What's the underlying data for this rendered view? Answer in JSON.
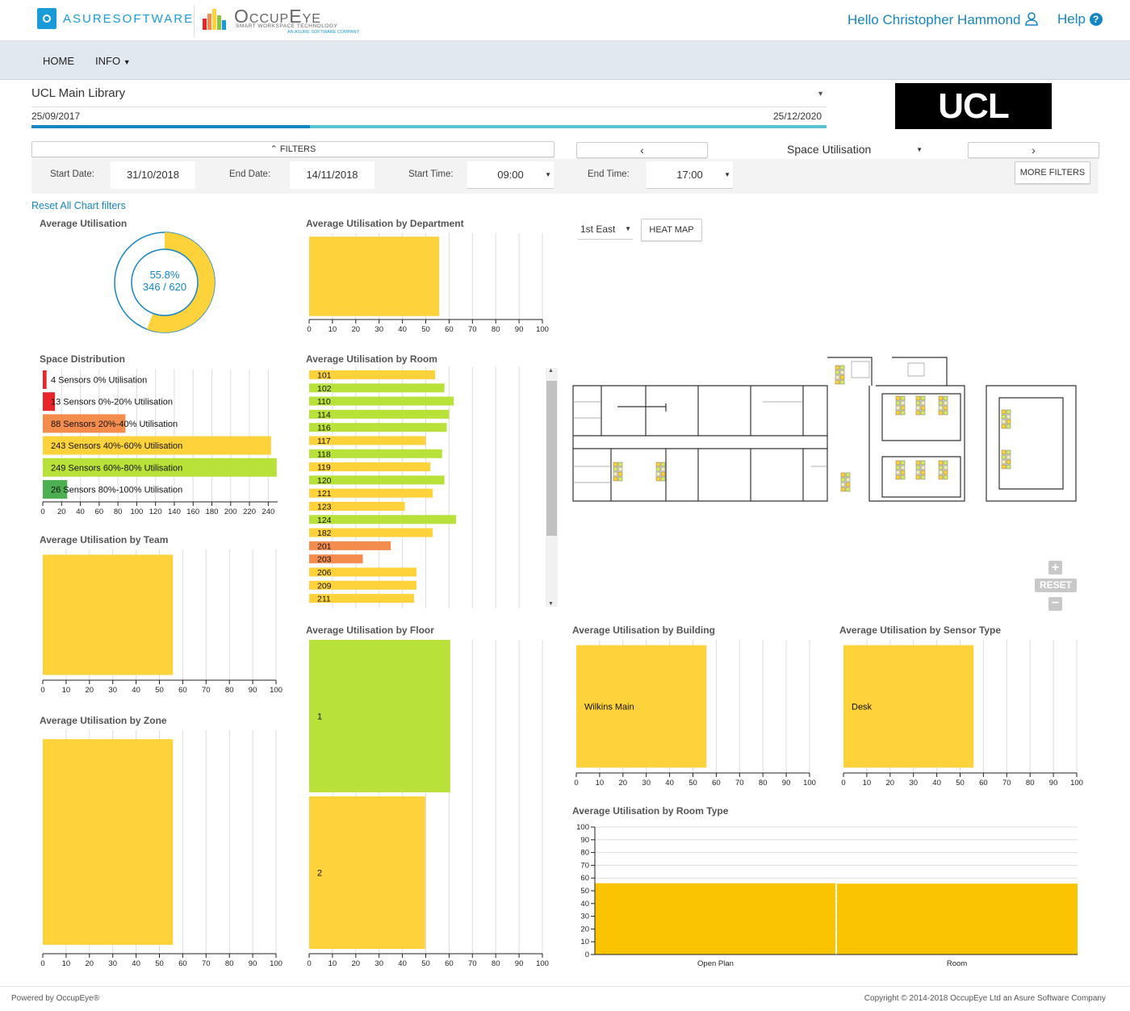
{
  "header": {
    "brand_name": "ASURESOFTWARE",
    "product_name": "OccupEye",
    "product_tagline": "SMART WORKSPACE TECHNOLOGY",
    "product_sub": "AN ASURE SOFTWARE COMPANY",
    "greeting": "Hello Christopher Hammond",
    "help_label": "Help"
  },
  "nav": {
    "home": "HOME",
    "info": "INFO"
  },
  "survey": {
    "name": "UCL Main Library",
    "start_date": "25/09/2017",
    "end_date": "25/12/2020",
    "progress_fraction": 0.35,
    "logo_text": "UCL"
  },
  "controls": {
    "filters_label": "FILTERS",
    "view_select": "Space Utilisation",
    "more_filters": "MORE FILTERS"
  },
  "filters": {
    "start_date_label": "Start Date:",
    "start_date": "31/10/2018",
    "end_date_label": "End Date:",
    "end_date": "14/11/2018",
    "start_time_label": "Start Time:",
    "start_time": "09:00",
    "end_time_label": "End Time:",
    "end_time": "17:00"
  },
  "reset_link": "Reset All Chart filters",
  "avg_util": {
    "title": "Average Utilisation",
    "percent": "55.8%",
    "ratio": "346 / 620",
    "value": 0.558
  },
  "floorplan": {
    "floor_select": "1st East",
    "heatmap_button": "HEAT MAP",
    "zoom_reset": "RESET"
  },
  "footer": {
    "left": "Powered by OccupEye®",
    "right": "Copyright © 2014-2018 OccupEye Ltd an Asure Software Company"
  },
  "colors": {
    "yellow": "#fed23a",
    "green": "#b8e23a",
    "orange": "#f48c4d",
    "red": "#e8262a",
    "darkgreen": "#4caf50",
    "roomtype": "#fbc403",
    "accent": "#1685c3",
    "teal": "#5bc4d0"
  },
  "chart_data": [
    {
      "id": "dept",
      "type": "bar",
      "orientation": "horizontal",
      "title": "Average Utilisation by Department",
      "categories": [
        ""
      ],
      "values": [
        55.8
      ],
      "xlim": [
        0,
        100
      ]
    },
    {
      "id": "space_dist",
      "type": "bar",
      "orientation": "horizontal",
      "title": "Space Distribution",
      "xlim": [
        0,
        250
      ],
      "categories": [
        "4 Sensors 0% Utilisation",
        "13 Sensors 0%-20% Utilisation",
        "88 Sensors 20%-40% Utilisation",
        "243 Sensors 40%-60% Utilisation",
        "249 Sensors 60%-80% Utilisation",
        "26 Sensors 80%-100% Utilisation"
      ],
      "values": [
        4,
        13,
        88,
        243,
        249,
        26
      ],
      "colors": [
        "red",
        "red",
        "orange",
        "yellow",
        "green",
        "darkgreen"
      ],
      "ticks": [
        0,
        20,
        40,
        60,
        80,
        100,
        120,
        140,
        160,
        180,
        200,
        220,
        240
      ]
    },
    {
      "id": "room",
      "type": "bar",
      "orientation": "horizontal",
      "title": "Average Utilisation by Room",
      "xlim": [
        0,
        100
      ],
      "categories": [
        "101",
        "102",
        "110",
        "114",
        "116",
        "117",
        "118",
        "119",
        "120",
        "121",
        "123",
        "124",
        "182",
        "201",
        "203",
        "206",
        "209",
        "211"
      ],
      "values": [
        54,
        58,
        62,
        60,
        59,
        50,
        57,
        52,
        58,
        53,
        41,
        63,
        53,
        35,
        23,
        46,
        46,
        45
      ],
      "colors": [
        "yellow",
        "green",
        "green",
        "green",
        "green",
        "yellow",
        "green",
        "yellow",
        "green",
        "yellow",
        "yellow",
        "green",
        "yellow",
        "orange",
        "orange",
        "yellow",
        "yellow",
        "yellow"
      ]
    },
    {
      "id": "team",
      "type": "bar",
      "orientation": "horizontal",
      "title": "Average Utilisation by Team",
      "categories": [
        ""
      ],
      "values": [
        55.8
      ],
      "xlim": [
        0,
        100
      ]
    },
    {
      "id": "zone",
      "type": "bar",
      "orientation": "horizontal",
      "title": "Average Utilisation by Zone",
      "categories": [
        ""
      ],
      "values": [
        55.8
      ],
      "xlim": [
        0,
        100
      ]
    },
    {
      "id": "floor",
      "type": "bar",
      "orientation": "horizontal",
      "title": "Average Utilisation by Floor",
      "categories": [
        "1",
        "2"
      ],
      "values": [
        60.5,
        49.8
      ],
      "colors": [
        "green",
        "yellow"
      ],
      "xlim": [
        0,
        100
      ]
    },
    {
      "id": "building",
      "type": "bar",
      "orientation": "horizontal",
      "title": "Average Utilisation by Building",
      "categories": [
        "Wilkins Main"
      ],
      "values": [
        55.8
      ],
      "xlim": [
        0,
        100
      ]
    },
    {
      "id": "sensor",
      "type": "bar",
      "orientation": "horizontal",
      "title": "Average Utilisation by Sensor Type",
      "categories": [
        "Desk"
      ],
      "values": [
        55.8
      ],
      "xlim": [
        0,
        100
      ]
    },
    {
      "id": "roomtype",
      "type": "bar",
      "orientation": "vertical",
      "title": "Average Utilisation by Room Type",
      "categories": [
        "Open Plan",
        "Room"
      ],
      "values": [
        55.9,
        55.6
      ],
      "ylim": [
        0,
        100
      ],
      "yticks": [
        0,
        10,
        20,
        30,
        40,
        50,
        60,
        70,
        80,
        90,
        100
      ]
    }
  ]
}
